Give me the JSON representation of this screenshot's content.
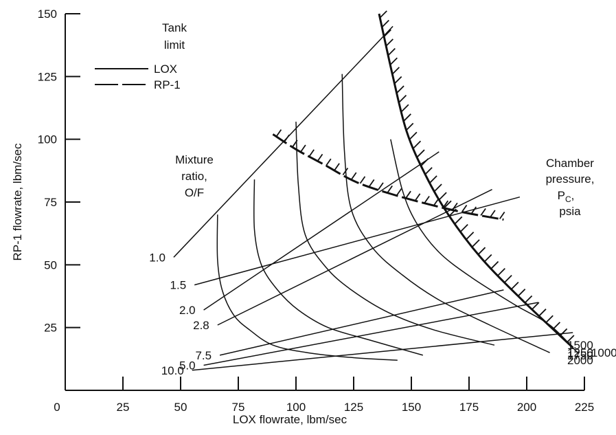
{
  "chart_data": {
    "type": "line",
    "xlabel": "LOX flowrate, lbm/sec",
    "ylabel": "RP-1 flowrate, lbm/sec",
    "xlim": [
      0,
      225
    ],
    "ylim": [
      0,
      150
    ],
    "x_ticks": [
      "0",
      "25",
      "50",
      "75",
      "100",
      "125",
      "150",
      "175",
      "200",
      "225"
    ],
    "y_ticks": [
      "25",
      "50",
      "75",
      "100",
      "125",
      "150"
    ],
    "legend": {
      "title_line1": "Tank",
      "title_line2": "limit",
      "entries": [
        {
          "label": "LOX",
          "style": "solid"
        },
        {
          "label": "RP-1",
          "style": "dashed"
        }
      ]
    },
    "mixture_ratio_label": [
      "Mixture",
      "ratio,",
      "O/F"
    ],
    "chamber_pressure_label": [
      "Chamber",
      "pressure,",
      "P",
      "C",
      ",",
      "psia"
    ],
    "mixture_ratio_lines": [
      {
        "label": "1.0",
        "x": [
          47,
          142
        ],
        "y": [
          53,
          145
        ]
      },
      {
        "label": "1.5",
        "x": [
          56,
          197
        ],
        "y": [
          42,
          77
        ]
      },
      {
        "label": "2.0",
        "x": [
          60,
          162
        ],
        "y": [
          32,
          95
        ]
      },
      {
        "label": "2.8",
        "x": [
          66,
          185
        ],
        "y": [
          26,
          80
        ]
      },
      {
        "label": "7.5",
        "x": [
          67,
          190
        ],
        "y": [
          14,
          40
        ]
      },
      {
        "label": "5.0",
        "x": [
          60,
          205
        ],
        "y": [
          10,
          35
        ]
      },
      {
        "label": "10.0",
        "x": [
          55,
          220
        ],
        "y": [
          8,
          23
        ]
      }
    ],
    "chamber_pressure_curves": [
      {
        "label": "1000",
        "x": [
          141,
          146,
          152,
          162,
          176,
          195,
          210,
          222
        ],
        "y": [
          100,
          80,
          67,
          55,
          45,
          34,
          26,
          15
        ]
      },
      {
        "label": "1250",
        "x": [
          120,
          121,
          124,
          133,
          146,
          162,
          184,
          210
        ],
        "y": [
          126,
          95,
          72,
          57,
          46,
          36,
          26,
          15
        ]
      },
      {
        "label": "1500",
        "x": [
          100,
          101,
          104,
          113,
          124,
          140,
          160,
          186
        ],
        "y": [
          107,
          82,
          62,
          49,
          40,
          31,
          24,
          18
        ]
      },
      {
        "label": "1750",
        "x": [
          82,
          82,
          85,
          92,
          101,
          114,
          132,
          155
        ],
        "y": [
          84,
          64,
          50,
          40,
          32,
          25,
          20,
          14
        ]
      },
      {
        "label": "2000",
        "x": [
          66,
          66,
          68,
          73,
          80,
          90,
          105,
          125,
          144
        ],
        "y": [
          70,
          52,
          40,
          30,
          24,
          18,
          15,
          13,
          12
        ]
      }
    ],
    "lox_tank_limit": {
      "x": [
        136,
        142,
        148,
        156,
        166,
        180,
        198,
        220
      ],
      "y": [
        150,
        125,
        103,
        86,
        70,
        53,
        36,
        17
      ]
    },
    "rp1_tank_limit": {
      "x": [
        90,
        100,
        112,
        126,
        142,
        158,
        172,
        190
      ],
      "y": [
        102,
        96,
        90,
        83,
        78,
        74,
        71,
        68
      ]
    }
  }
}
